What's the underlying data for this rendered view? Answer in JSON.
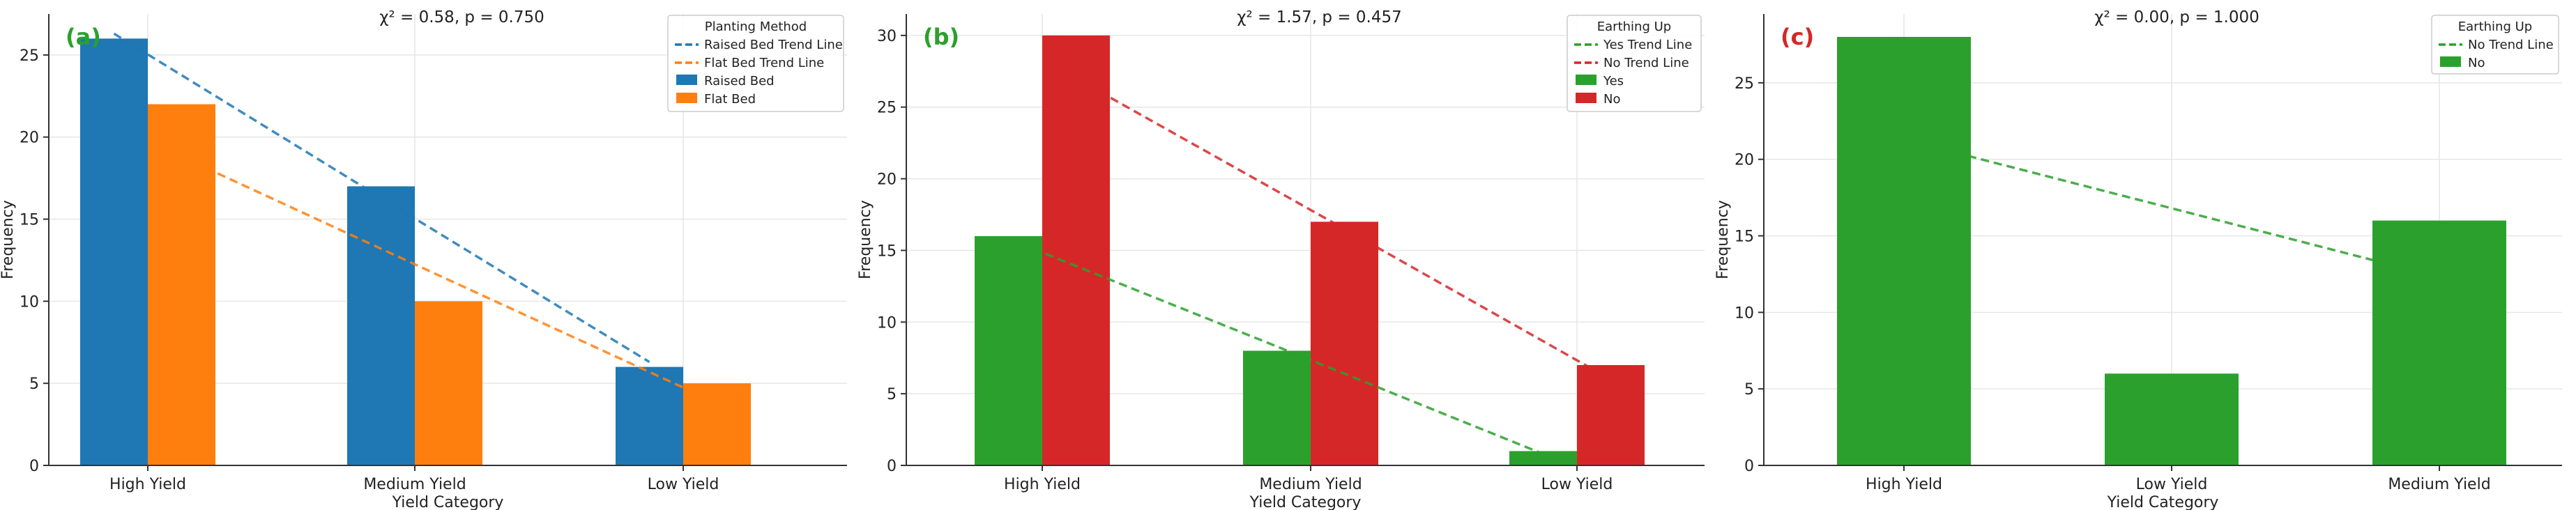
{
  "colors": {
    "blue": "#1f77b4",
    "orange": "#ff7f0e",
    "green": "#2ca02c",
    "red": "#d62728",
    "panel_label_a": "#2ca02c",
    "panel_label_b": "#2ca02c",
    "panel_label_c": "#d62728",
    "grid": "#e6e6e6",
    "axis": "#333333"
  },
  "chart_data": [
    {
      "type": "bar",
      "panel_label": "(a)",
      "title": "χ² = 0.58, p = 0.750",
      "xlabel": "Yield Category",
      "ylabel": "Frequency",
      "categories": [
        "High Yield",
        "Medium Yield",
        "Low Yield"
      ],
      "ylim": [
        0,
        27.5
      ],
      "yticks": [
        0,
        5,
        10,
        15,
        20,
        25
      ],
      "grid": true,
      "legend_title": "Planting Method",
      "legend_position": "top-right",
      "series": [
        {
          "name": "Raised Bed",
          "values": [
            26,
            17,
            6
          ],
          "color": "#1f77b4",
          "trend_label": "Raised Bed Trend Line",
          "trend": [
            26.3,
            16.3,
            6.3
          ]
        },
        {
          "name": "Flat Bed",
          "values": [
            22,
            10,
            5
          ],
          "color": "#ff7f0e",
          "trend_label": "Flat Bed Trend Line",
          "trend": [
            18.8,
            11.3,
            3.8
          ]
        }
      ]
    },
    {
      "type": "bar",
      "panel_label": "(b)",
      "title": "χ² = 1.57, p = 0.457",
      "xlabel": "Yield Category",
      "ylabel": "Frequency",
      "categories": [
        "High Yield",
        "Medium Yield",
        "Low Yield"
      ],
      "ylim": [
        0,
        31.5
      ],
      "yticks": [
        0,
        5,
        10,
        15,
        20,
        25,
        30
      ],
      "grid": true,
      "legend_title": "Earthing Up",
      "legend_position": "top-right",
      "series": [
        {
          "name": "Yes",
          "values": [
            16,
            8,
            1
          ],
          "color": "#2ca02c",
          "trend_label": "Yes Trend Line",
          "trend": [
            15.8,
            8.3,
            0.8
          ]
        },
        {
          "name": "No",
          "values": [
            30,
            17,
            7
          ],
          "color": "#d62728",
          "trend_label": "No Trend Line",
          "trend": [
            27.0,
            16.5,
            6.0
          ]
        }
      ]
    },
    {
      "type": "bar",
      "panel_label": "(c)",
      "title": "χ² = 0.00, p = 1.000",
      "xlabel": "Yield Category",
      "ylabel": "Frequency",
      "categories": [
        "High Yield",
        "Low Yield",
        "Medium Yield"
      ],
      "ylim": [
        0,
        29.5
      ],
      "yticks": [
        0,
        5,
        10,
        15,
        20,
        25
      ],
      "grid": true,
      "legend_title": "Earthing Up",
      "legend_position": "top-right",
      "series": [
        {
          "name": "No",
          "values": [
            28,
            6,
            16
          ],
          "color": "#2ca02c",
          "trend_label": "No Trend Line",
          "trend": [
            21.3,
            16.8,
            12.3
          ]
        }
      ]
    }
  ]
}
